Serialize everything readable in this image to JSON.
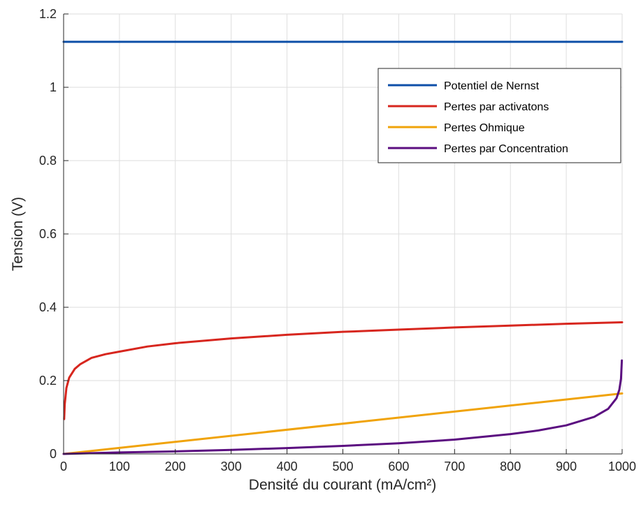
{
  "chart_data": {
    "type": "line",
    "title": "",
    "xlabel": "Densité du courant (mA/cm²)",
    "ylabel": "Tension (V)",
    "xlim": [
      0,
      1000
    ],
    "ylim": [
      0,
      1.2
    ],
    "xticks": [
      0,
      100,
      200,
      300,
      400,
      500,
      600,
      700,
      800,
      900,
      1000
    ],
    "yticks": [
      0,
      0.2,
      0.4,
      0.6,
      0.8,
      1,
      1.2
    ],
    "xtick_labels": [
      "0",
      "100",
      "200",
      "300",
      "400",
      "500",
      "600",
      "700",
      "800",
      "900",
      "1000"
    ],
    "ytick_labels": [
      "0",
      "0.2",
      "0.4",
      "0.6",
      "0.8",
      "1",
      "1.2"
    ],
    "grid": true,
    "legend_position": "top-right",
    "series": [
      {
        "name": "Potentiel de Nernst",
        "color": "#0D4FA8",
        "x": [
          0,
          1000
        ],
        "y": [
          1.124,
          1.124
        ]
      },
      {
        "name": "Pertes par activatons",
        "color": "#D7261E",
        "x": [
          1,
          2,
          5,
          10,
          20,
          30,
          50,
          75,
          100,
          150,
          200,
          300,
          400,
          500,
          600,
          700,
          800,
          900,
          1000
        ],
        "y": [
          0.095,
          0.135,
          0.18,
          0.208,
          0.232,
          0.245,
          0.262,
          0.272,
          0.279,
          0.293,
          0.302,
          0.315,
          0.325,
          0.333,
          0.339,
          0.345,
          0.35,
          0.355,
          0.359
        ]
      },
      {
        "name": "Pertes Ohmique",
        "color": "#F0A30A",
        "x": [
          0,
          1000
        ],
        "y": [
          0,
          0.165
        ]
      },
      {
        "name": "Pertes par Concentration",
        "color": "#5B0E80",
        "x": [
          0,
          100,
          200,
          300,
          400,
          500,
          600,
          700,
          800,
          850,
          900,
          950,
          975,
          990,
          995,
          998,
          999.5
        ],
        "y": [
          0,
          0.004,
          0.007,
          0.011,
          0.016,
          0.022,
          0.029,
          0.039,
          0.054,
          0.064,
          0.078,
          0.101,
          0.123,
          0.152,
          0.175,
          0.205,
          0.255
        ]
      }
    ]
  }
}
